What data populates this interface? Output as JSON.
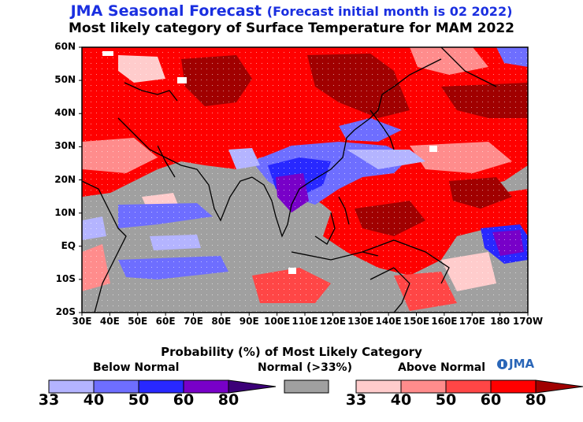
{
  "title": {
    "main": "JMA Seasonal Forecast",
    "sub": "(Forecast initial month is 02 2022)",
    "line2": "Most likely category of Surface Temperature for MAM 2022"
  },
  "map": {
    "region": "30E-170W, 20S-60N",
    "lat_labels": [
      "60N",
      "50N",
      "40N",
      "30N",
      "20N",
      "10N",
      "EQ",
      "10S",
      "20S"
    ],
    "lon_labels": [
      "30E",
      "40E",
      "50E",
      "60E",
      "70E",
      "80E",
      "90E",
      "100E",
      "110E",
      "120E",
      "130E",
      "140E",
      "150E",
      "160E",
      "170E",
      "180",
      "170W"
    ],
    "colors": {
      "below_33": "#b4b4ff",
      "below_40": "#6e6eff",
      "below_50": "#2828ff",
      "below_60": "#7800c8",
      "below_80": "#3c0078",
      "normal": "#a0a0a0",
      "above_33": "#ffcccc",
      "above_40": "#ff8c8c",
      "above_50": "#ff4646",
      "above_60": "#ff0000",
      "above_80": "#a00000"
    }
  },
  "legend": {
    "title": "Probability (%) of Most Likely Category",
    "below_label": "Below Normal",
    "normal_label": "Normal (>33%)",
    "above_label": "Above Normal",
    "below_ticks": [
      "33",
      "40",
      "50",
      "60",
      "80"
    ],
    "above_ticks": [
      "33",
      "40",
      "50",
      "60",
      "80"
    ],
    "logo_text": "JMA"
  }
}
